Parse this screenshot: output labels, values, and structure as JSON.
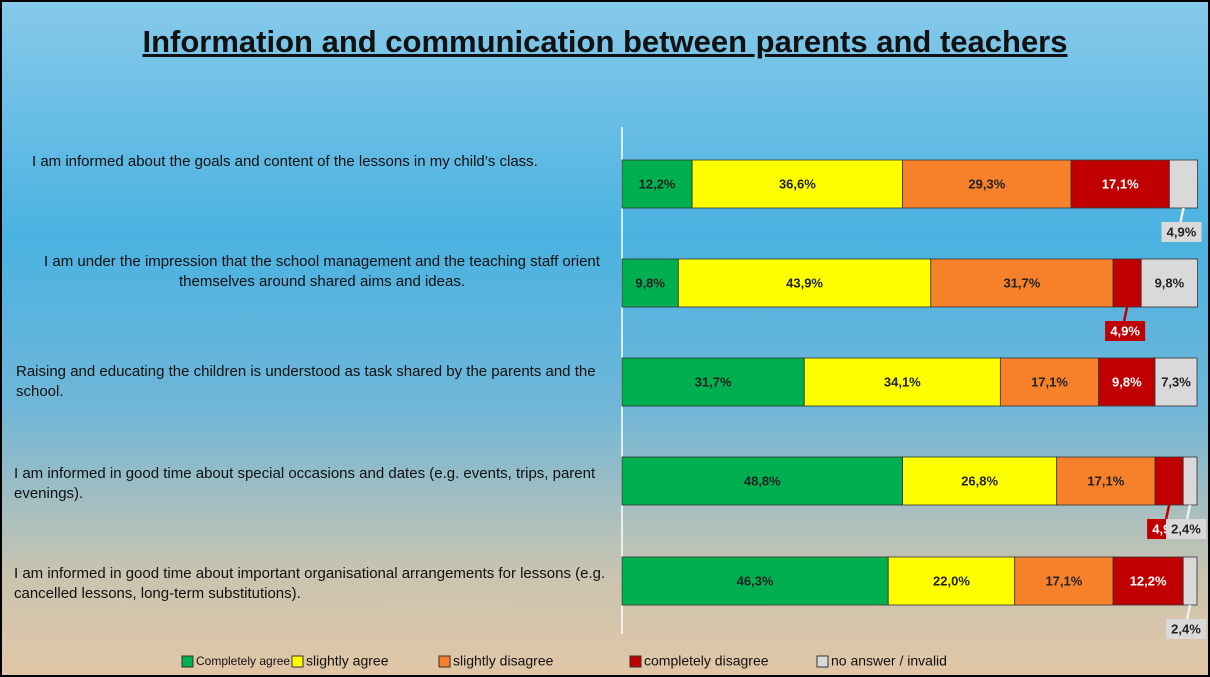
{
  "chart_data": {
    "type": "stacked-bar-horizontal",
    "title": "Information and communication between parents and teachers",
    "categories": [
      "I am informed about the goals and content of the lessons in my child’s class.",
      "I am under the impression that the school management and the teaching staff orient themselves around shared aims and ideas.",
      "Raising and educating the children is understood as task shared by the parents and the school.",
      "I am informed in good time about special occasions and dates (e.g. events, trips, parent evenings).",
      "I am informed in good time about important organisational arrangements for lessons (e.g. cancelled lessons, long-term substitutions)."
    ],
    "series": [
      {
        "name": "Completely agree",
        "color": "#00b050",
        "values": [
          12.2,
          9.8,
          31.7,
          48.8,
          46.3
        ],
        "value_labels": [
          "12,2%",
          "9,8%",
          "31,7%",
          "48,8%",
          "46,3%"
        ]
      },
      {
        "name": "slightly agree",
        "color": "#ffff00",
        "values": [
          36.6,
          43.9,
          34.1,
          26.8,
          22.0
        ],
        "value_labels": [
          "36,6%",
          "43,9%",
          "34,1%",
          "26,8%",
          "22,0%"
        ]
      },
      {
        "name": "slightly disagree",
        "color": "#f7812a",
        "values": [
          29.3,
          31.7,
          17.1,
          17.1,
          17.1
        ],
        "value_labels": [
          "29,3%",
          "31,7%",
          "17,1%",
          "17,1%",
          "17,1%"
        ]
      },
      {
        "name": "completely disagree",
        "color": "#c00000",
        "values": [
          17.1,
          4.9,
          9.8,
          4.9,
          12.2
        ],
        "value_labels": [
          "17,1%",
          "4,9%",
          "9,8%",
          "4,9%",
          "12,2%"
        ]
      },
      {
        "name": "no answer / invalid",
        "color": "#d9d9d9",
        "values": [
          4.9,
          9.8,
          7.3,
          2.4,
          2.4
        ],
        "value_labels": [
          "4,9%",
          "9,8%",
          "7,3%",
          "2,4%",
          "2,4%"
        ]
      }
    ],
    "legend": "bottom"
  }
}
